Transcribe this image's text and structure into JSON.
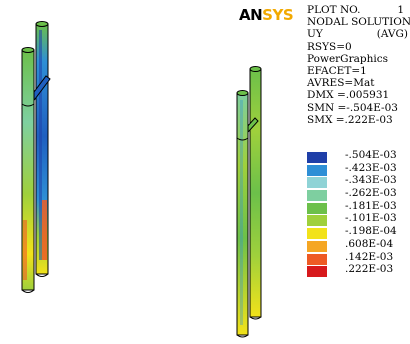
{
  "window": {
    "logo_an": "AN",
    "logo_sys": "SYS"
  },
  "info_panel": {
    "plot_label": "PLOT NO.",
    "plot_number": "1",
    "solution_type": "NODAL SOLUTION",
    "variable": "UY",
    "averaging": "(AVG)",
    "rsys": "RSYS=0",
    "graphics": "PowerGraphics",
    "efacet": "EFACET=1",
    "avres": "AVRES=Mat",
    "dmx": "DMX =.005931",
    "smn": "SMN =-.504E-03",
    "smx": "SMX =.222E-03"
  },
  "legend": {
    "items": [
      {
        "label": "-.504E-03",
        "color": "#1f3fa8"
      },
      {
        "label": "-.423E-03",
        "color": "#2e8fd6"
      },
      {
        "label": "-.343E-03",
        "color": "#8fd3d6"
      },
      {
        "label": "-.262E-03",
        "color": "#7ecfa0"
      },
      {
        "label": "-.181E-03",
        "color": "#6cc04a"
      },
      {
        "label": "-.101E-03",
        "color": "#9fd03c"
      },
      {
        "label": "-.198E-04",
        "color": "#f2e21a"
      },
      {
        "label": ".608E-04",
        "color": "#f5a623"
      },
      {
        "label": ".142E-03",
        "color": "#ee5a24"
      },
      {
        "label": ".222E-03",
        "color": "#d7191c"
      }
    ]
  },
  "colors": {
    "background": "#ffffff",
    "text": "#000000",
    "logo_accent": "#f2a900"
  }
}
